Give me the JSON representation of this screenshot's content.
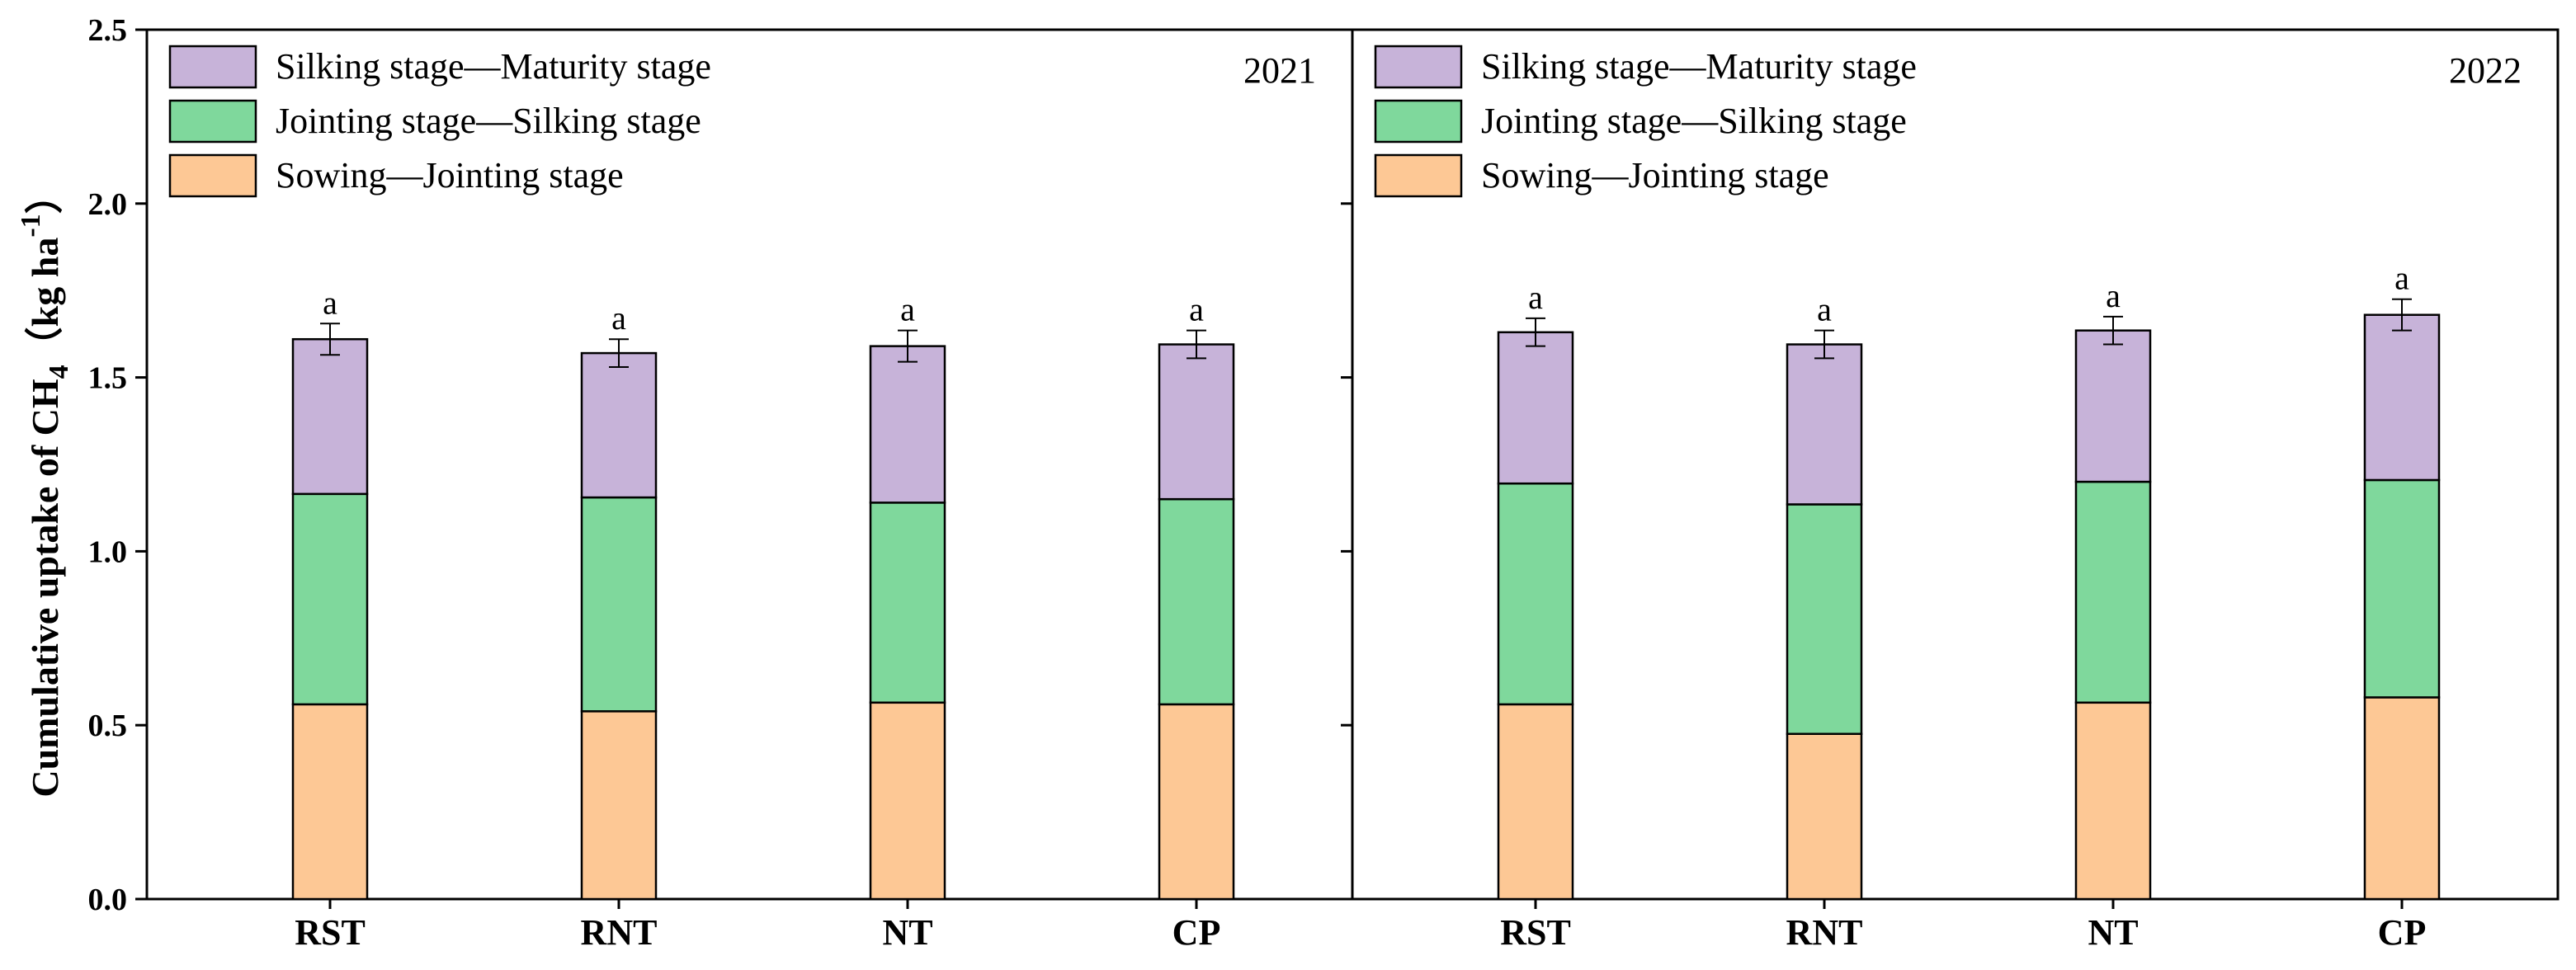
{
  "chart_data": {
    "type": "bar",
    "stacked": true,
    "y_title_text": "Cumulative uptake of CH",
    "y_title_sub": "4",
    "y_title_unit": "（kg ha",
    "y_title_sup": "-1",
    "y_title_close": "）",
    "ylim": [
      0,
      2.5
    ],
    "yticks": [
      "0.0",
      "0.5",
      "1.0",
      "1.5",
      "2.0",
      "2.5"
    ],
    "legend_position": "top-left",
    "legend": [
      {
        "label": "Silking stage—Maturity stage",
        "color": "#c7b3d9"
      },
      {
        "label": "Jointing stage—Silking stage",
        "color": "#7fd89c"
      },
      {
        "label": "Sowing—Jointing stage",
        "color": "#fdc895"
      }
    ],
    "panels": [
      {
        "year": "2021",
        "categories": [
          "RST",
          "RNT",
          "NT",
          "CP"
        ],
        "series": [
          {
            "name": "Sowing—Jointing stage",
            "color": "#fdc895",
            "values": [
              0.56,
              0.54,
              0.565,
              0.56
            ]
          },
          {
            "name": "Jointing stage—Silking stage",
            "color": "#7fd89c",
            "values": [
              0.605,
              0.615,
              0.575,
              0.59
            ]
          },
          {
            "name": "Silking stage—Maturity stage",
            "color": "#c7b3d9",
            "values": [
              0.445,
              0.415,
              0.45,
              0.445
            ]
          }
        ],
        "totals": [
          1.61,
          1.57,
          1.59,
          1.595
        ],
        "errors": [
          0.045,
          0.04,
          0.045,
          0.04
        ],
        "significance": [
          "a",
          "a",
          "a",
          "a"
        ]
      },
      {
        "year": "2022",
        "categories": [
          "RST",
          "RNT",
          "NT",
          "CP"
        ],
        "series": [
          {
            "name": "Sowing—Jointing stage",
            "color": "#fdc895",
            "values": [
              0.56,
              0.475,
              0.565,
              0.58
            ]
          },
          {
            "name": "Jointing stage—Silking stage",
            "color": "#7fd89c",
            "values": [
              0.635,
              0.66,
              0.635,
              0.625
            ]
          },
          {
            "name": "Silking stage—Maturity stage",
            "color": "#c7b3d9",
            "values": [
              0.435,
              0.46,
              0.435,
              0.475
            ]
          }
        ],
        "totals": [
          1.63,
          1.595,
          1.635,
          1.68
        ],
        "errors": [
          0.04,
          0.04,
          0.04,
          0.045
        ],
        "significance": [
          "a",
          "a",
          "a",
          "a"
        ]
      }
    ]
  }
}
